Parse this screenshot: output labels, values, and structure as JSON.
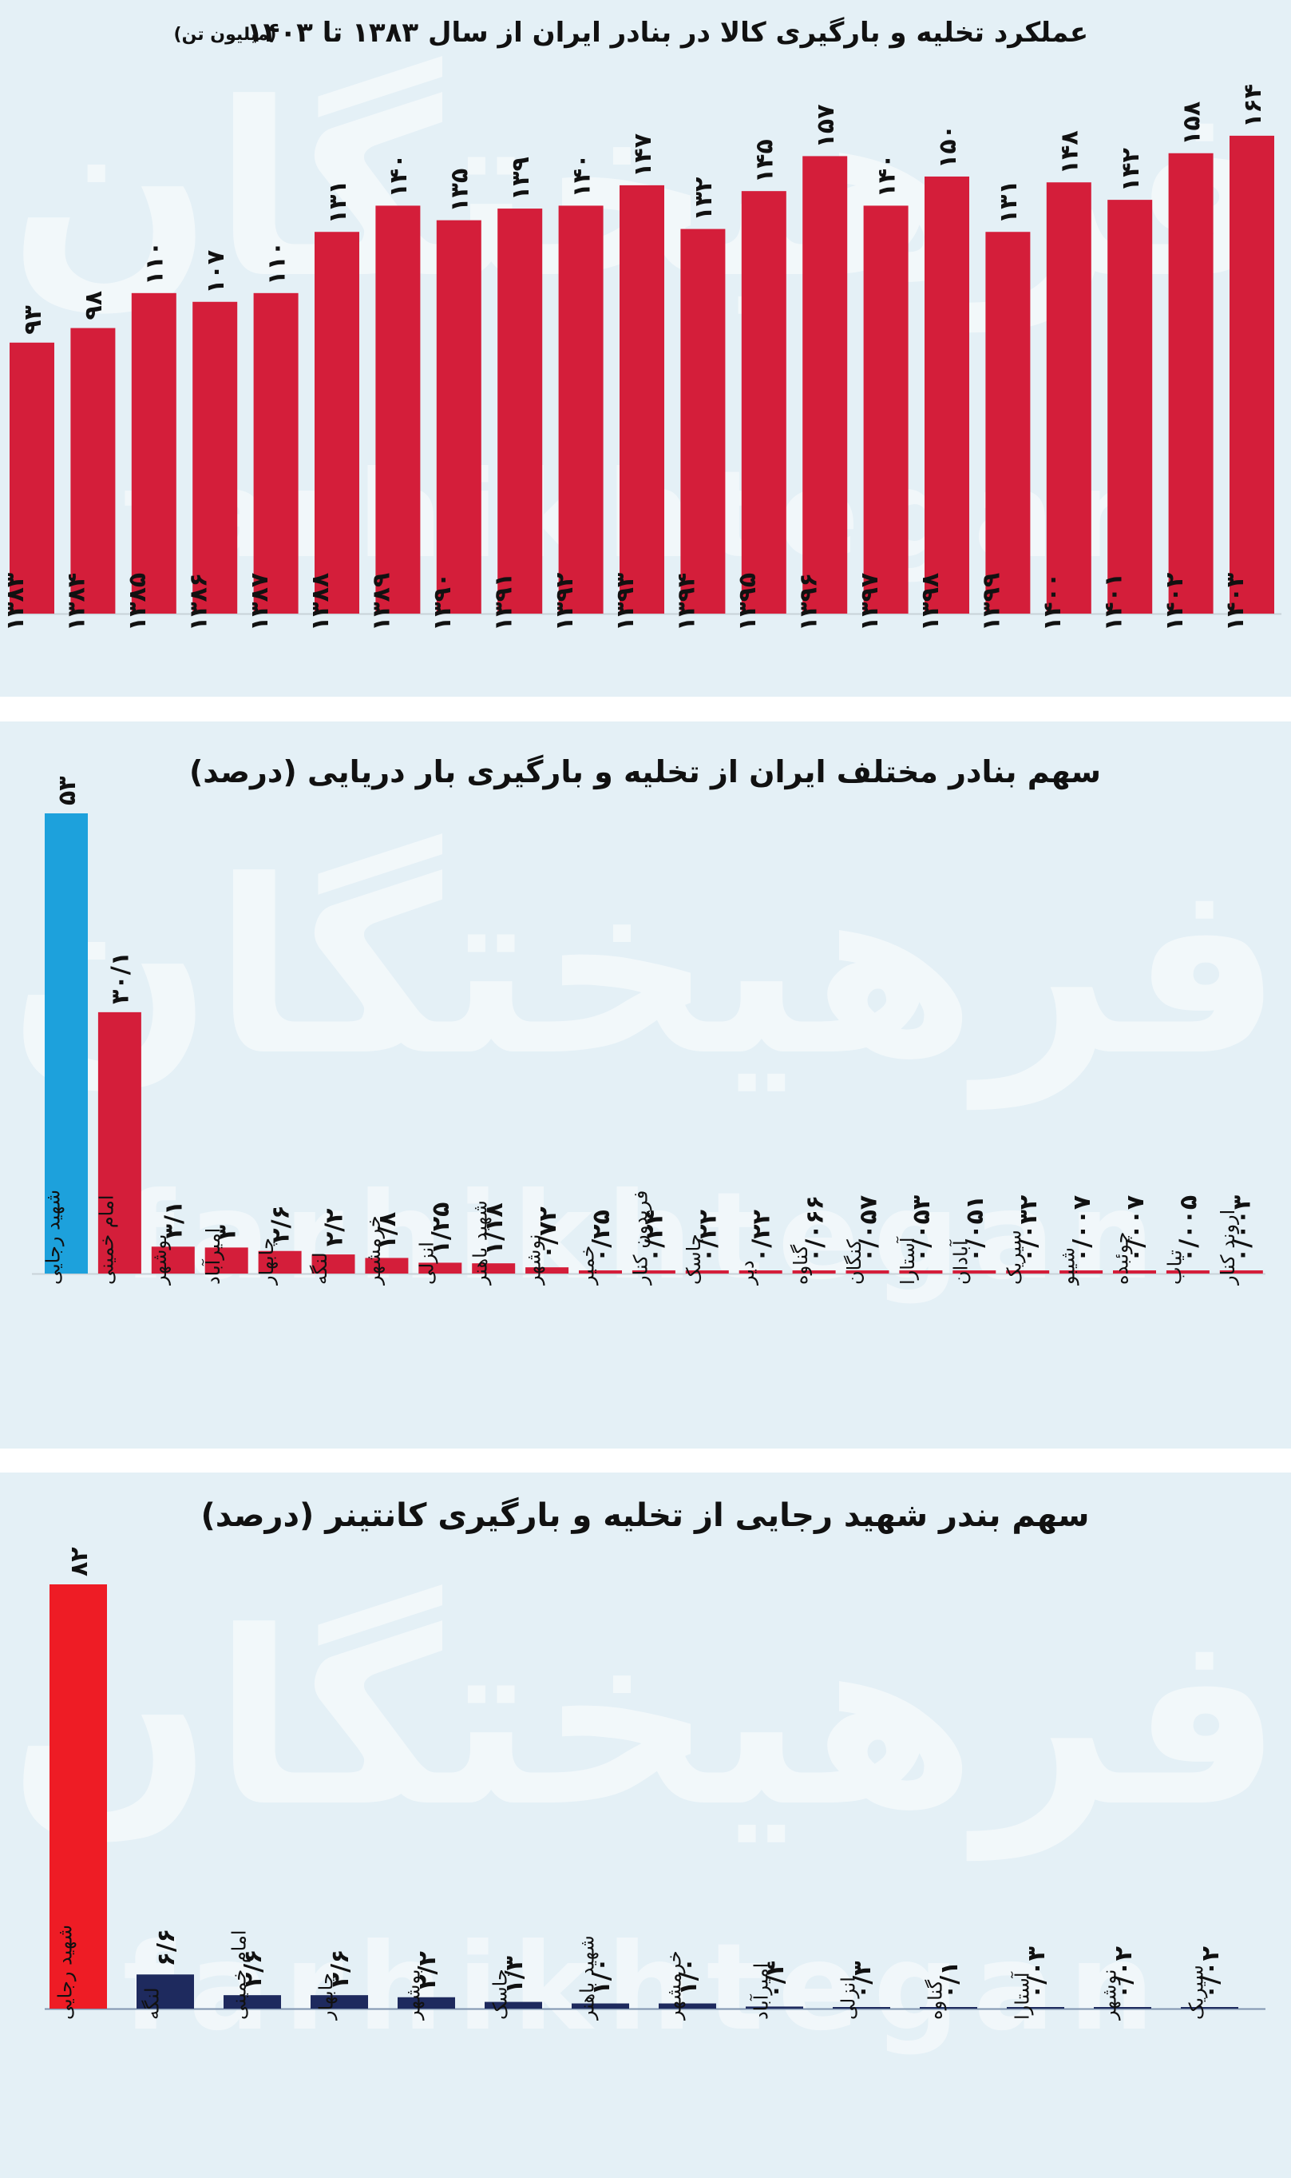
{
  "watermark": {
    "persian": "فرهیختگان",
    "latin": "farhikhtegan"
  },
  "panels": [
    {
      "id": "p1",
      "title": "عملکرد تخلیه و بارگیری کالا در بنادر ایران از سال ۱۳۸۳ تا ۱۴۰۳",
      "unit": "(میلیون تن)",
      "colors": {
        "bar": "#d41e3a"
      },
      "chart_data": {
        "type": "bar",
        "title": "عملکرد تخلیه و بارگیری کالا در بنادر ایران از سال ۱۳۸۳ تا ۱۴۰۳",
        "ylabel": "(میلیون تن)",
        "ylim": [
          0,
          170
        ],
        "grid": false,
        "categories": [
          "۱۳۸۳",
          "۱۳۸۴",
          "۱۳۸۵",
          "۱۳۸۶",
          "۱۳۸۷",
          "۱۳۸۸",
          "۱۳۸۹",
          "۱۳۹۰",
          "۱۳۹۱",
          "۱۳۹۲",
          "۱۳۹۳",
          "۱۳۹۴",
          "۱۳۹۵",
          "۱۳۹۶",
          "۱۳۹۷",
          "۱۳۹۸",
          "۱۳۹۹",
          "۱۴۰۰",
          "۱۴۰۱",
          "۱۴۰۲",
          "۱۴۰۳"
        ],
        "values": [
          93,
          98,
          110,
          107,
          110,
          131,
          140,
          135,
          139,
          140,
          147,
          132,
          145,
          157,
          140,
          150,
          131,
          148,
          142,
          158,
          164
        ],
        "value_labels": [
          "۹۳",
          "۹۸",
          "۱۱۰",
          "۱۰۷",
          "۱۱۰",
          "۱۳۱",
          "۱۴۰",
          "۱۳۵",
          "۱۳۹",
          "۱۴۰",
          "۱۴۷",
          "۱۳۲",
          "۱۴۵",
          "۱۵۷",
          "۱۴۰",
          "۱۵۰",
          "۱۳۱",
          "۱۴۸",
          "۱۴۲",
          "۱۵۸",
          "۱۶۴"
        ]
      }
    },
    {
      "id": "p2",
      "title": "سهم بنادر مختلف ایران از تخلیه و بارگیری بار دریایی (درصد)",
      "colors": {
        "bar": "#d41e3a",
        "highlight": "#1da1dc"
      },
      "chart_data": {
        "type": "bar",
        "title": "سهم بنادر مختلف ایران از تخلیه و بارگیری بار دریایی (درصد)",
        "ylim": [
          0,
          53
        ],
        "grid": false,
        "categories": [
          "شهید رجایی",
          "امام خمینی",
          "بوشهر",
          "امیرآباد",
          "چابهار",
          "لنگه",
          "خرمشهر",
          "انزلی",
          "شهید باهنر",
          "نوشهر",
          "خمیر",
          "فریدون کنار",
          "جاسک",
          "دیر",
          "گناوه",
          "کنگان",
          "آستارا",
          "آبادان",
          "سیریک",
          "شیبو",
          "چوئبده",
          "تیاب",
          "اروند کنار"
        ],
        "values": [
          53,
          30.1,
          3.1,
          3,
          2.6,
          2.2,
          1.8,
          1.25,
          1.18,
          0.72,
          0.25,
          0.24,
          0.22,
          0.22,
          0.066,
          0.057,
          0.053,
          0.051,
          0.032,
          0.007,
          0.007,
          0.005,
          0.003
        ],
        "value_labels": [
          "۵۳",
          "۳۰/۱",
          "۳/۱",
          "۳",
          "۲/۶",
          "۲/۲",
          "۱/۸",
          "۱/۲۵",
          "۱/۱۸",
          "۰/۷۲",
          "۰/۲۵",
          "۰/۲۴",
          "۰/۲۲",
          "۰/۲۲",
          "۰/۰۶۶",
          "۰/۰۵۷",
          "۰/۰۵۳",
          "۰/۰۵۱",
          "۰/۰۳۲",
          "۰/۰۰۷",
          "۰/۰۰۷",
          "۰/۰۰۵",
          "۰/۰۰۳"
        ],
        "highlight_index": 0
      }
    },
    {
      "id": "p3",
      "title": "سهم بندر شهید رجایی از تخلیه و بارگیری کانتینر (درصد)",
      "colors": {
        "bar": "#1e2a5e",
        "highlight": "#ee1c25"
      },
      "chart_data": {
        "type": "bar",
        "title": "سهم بندر شهید رجایی از تخلیه و بارگیری کانتینر (درصد)",
        "ylim": [
          0,
          82
        ],
        "grid": false,
        "categories": [
          "شهید رجایی",
          "لنگه",
          "امام خمینی",
          "چابهار",
          "بوشهر",
          "جاسک",
          "شهید باهنر",
          "خرمشهر",
          "امیرآباد",
          "انزلی",
          "گناوه",
          "آستارا",
          "نوشهر",
          "سیریک"
        ],
        "values": [
          82,
          6.6,
          2.6,
          2.6,
          2.2,
          1.3,
          1.0,
          1.0,
          0.4,
          0.3,
          0.1,
          0.03,
          0.02,
          0.02
        ],
        "value_labels": [
          "۸۲",
          "۶/۶",
          "۲/۶",
          "۲/۶",
          "۲/۲",
          "۱/۳",
          "۱/۰",
          "۱/۰",
          "۰/۴",
          "۰/۳",
          "۰/۱",
          "۰/۰۳",
          "۰/۰۲",
          "۰/۰۲"
        ],
        "highlight_index": 0
      }
    }
  ]
}
